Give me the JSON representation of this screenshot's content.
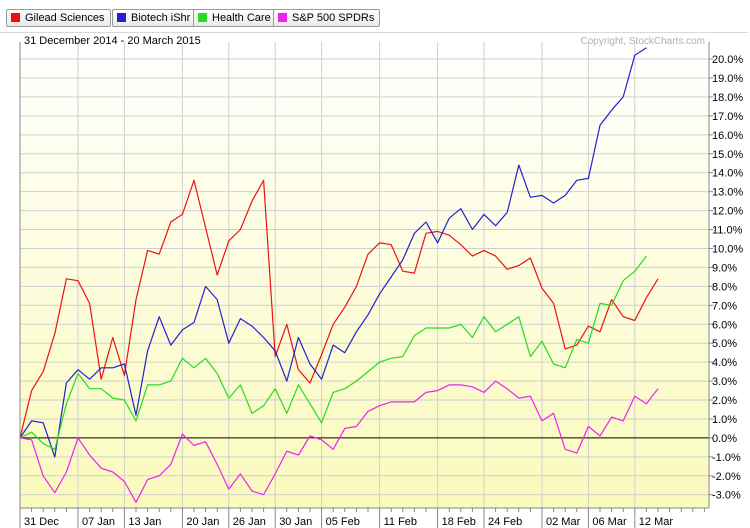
{
  "legend": [
    {
      "label": "Gilead Sciences",
      "color": "#ee1111"
    },
    {
      "label": "Biotech iShr",
      "color": "#2222cc"
    },
    {
      "label": "Health Care",
      "color": "#22dd22"
    },
    {
      "label": "S&P 500 SPDRs",
      "color": "#ee22ee"
    }
  ],
  "header": {
    "date_range": "31 December 2014 - 20 March 2015",
    "copyright": "Copyright, StockCharts.com"
  },
  "chart_data": {
    "type": "line",
    "x_labels": [
      "31 Dec",
      "",
      "",
      "",
      "",
      "07 Jan",
      "",
      "",
      "",
      "13 Jan",
      "",
      "",
      "",
      "",
      "20 Jan",
      "",
      "",
      "",
      "26 Jan",
      "",
      "",
      "",
      "30 Jan",
      "",
      "",
      "",
      "05 Feb",
      "",
      "",
      "",
      "",
      "11 Feb",
      "",
      "",
      "",
      "",
      "18 Feb",
      "",
      "",
      "",
      "24 Feb",
      "",
      "",
      "",
      "",
      "02 Mar",
      "",
      "",
      "",
      "06 Mar",
      "",
      "",
      "",
      "12 Mar",
      "",
      "",
      "",
      "",
      "",
      "",
      "",
      ""
    ],
    "y_ticks": [
      "20.0%",
      "19.0%",
      "18.0%",
      "17.0%",
      "16.0%",
      "15.0%",
      "14.0%",
      "13.0%",
      "12.0%",
      "11.0%",
      "10.0%",
      "9.0%",
      "8.0%",
      "7.0%",
      "6.0%",
      "5.0%",
      "4.0%",
      "3.0%",
      "2.0%",
      "1.0%",
      "0.0%",
      "-1.0%",
      "-2.0%",
      "-3.0%"
    ],
    "ylim": [
      -3.7,
      20.9
    ],
    "grid": true,
    "series": [
      {
        "name": "Gilead Sciences",
        "color": "#ee1111",
        "values": [
          0.0,
          2.5,
          3.5,
          5.5,
          8.4,
          8.3,
          7.1,
          3.1,
          5.3,
          3.3,
          7.3,
          9.9,
          9.7,
          11.4,
          11.8,
          13.6,
          11.1,
          8.6,
          10.4,
          11.0,
          12.5,
          13.6,
          4.3,
          6.0,
          3.6,
          2.9,
          4.4,
          6.0,
          6.9,
          8.0,
          9.7,
          10.3,
          10.2,
          8.8,
          8.7,
          10.8,
          10.9,
          10.7,
          10.2,
          9.6,
          9.9,
          9.6,
          8.9,
          9.1,
          9.5,
          7.9,
          7.1,
          4.7,
          4.9,
          5.9,
          5.6,
          7.3,
          6.4,
          6.2,
          7.4,
          8.4
        ]
      },
      {
        "name": "Biotech iShr",
        "color": "#2222cc",
        "values": [
          0.0,
          0.9,
          0.8,
          -1.0,
          2.9,
          3.6,
          3.1,
          3.7,
          3.7,
          3.9,
          1.2,
          4.6,
          6.4,
          4.9,
          5.7,
          6.1,
          8.0,
          7.3,
          5.0,
          6.3,
          5.9,
          5.3,
          4.6,
          3.0,
          5.3,
          3.9,
          3.1,
          4.9,
          4.5,
          5.6,
          6.5,
          7.6,
          8.5,
          9.4,
          10.8,
          11.4,
          10.3,
          11.6,
          12.1,
          11.0,
          11.8,
          11.2,
          11.9,
          14.4,
          12.7,
          12.8,
          12.4,
          12.8,
          13.6,
          13.7,
          16.5,
          17.3,
          18.0,
          20.2,
          20.6
        ]
      },
      {
        "name": "Health Care",
        "color": "#22dd22",
        "values": [
          0.0,
          0.3,
          -0.3,
          -0.6,
          1.8,
          3.4,
          2.6,
          2.6,
          2.1,
          2.0,
          0.9,
          2.8,
          2.8,
          3.0,
          4.2,
          3.7,
          4.2,
          3.4,
          2.1,
          2.8,
          1.3,
          1.7,
          2.6,
          1.3,
          2.8,
          1.8,
          0.8,
          2.4,
          2.6,
          3.0,
          3.5,
          4.0,
          4.2,
          4.3,
          5.4,
          5.8,
          5.8,
          5.8,
          6.0,
          5.3,
          6.4,
          5.6,
          6.0,
          6.4,
          4.3,
          5.1,
          3.9,
          3.7,
          5.2,
          5.0,
          7.1,
          7.0,
          8.3,
          8.8,
          9.6
        ]
      },
      {
        "name": "S&P 500 SPDRs",
        "color": "#ee22ee",
        "values": [
          0.0,
          -0.1,
          -2.0,
          -2.9,
          -1.8,
          0.0,
          -0.9,
          -1.6,
          -1.8,
          -2.3,
          -3.4,
          -2.2,
          -2.0,
          -1.4,
          0.2,
          -0.4,
          -0.2,
          -1.4,
          -2.7,
          -1.9,
          -2.8,
          -3.0,
          -1.9,
          -0.7,
          -0.9,
          0.1,
          -0.1,
          -0.6,
          0.5,
          0.6,
          1.4,
          1.7,
          1.9,
          1.9,
          1.9,
          2.4,
          2.5,
          2.8,
          2.8,
          2.7,
          2.4,
          3.0,
          2.6,
          2.1,
          2.2,
          0.9,
          1.3,
          -0.6,
          -0.8,
          0.6,
          0.1,
          1.1,
          0.9,
          2.2,
          1.8,
          2.6
        ]
      }
    ]
  }
}
